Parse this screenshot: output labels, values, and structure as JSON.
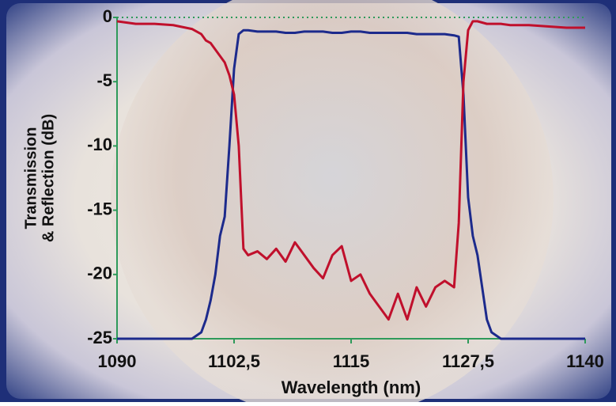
{
  "chart_data": {
    "type": "line",
    "ylabel": [
      "Transmission",
      "& Reflection (dB)"
    ],
    "xlabel": "Wavelength (nm)",
    "x": [
      1090,
      1092,
      1094,
      1096,
      1098,
      1099,
      1099.5,
      1100,
      1100.5,
      1101,
      1101.5,
      1102,
      1102.5,
      1103,
      1103.5,
      1104,
      1105,
      1106,
      1107,
      1108,
      1109,
      1110,
      1111,
      1112,
      1113,
      1114,
      1115,
      1116,
      1117,
      1118,
      1119,
      1120,
      1121,
      1122,
      1123,
      1124,
      1125,
      1126,
      1126.5,
      1127,
      1127.5,
      1128,
      1128.5,
      1129,
      1129.5,
      1130,
      1131,
      1132,
      1134,
      1136,
      1138,
      1140
    ],
    "series": [
      {
        "color": "#1c2a8c",
        "values": [
          -25,
          -25,
          -25,
          -25,
          -25,
          -24.5,
          -23.5,
          -22,
          -20,
          -17,
          -15.5,
          -10,
          -4,
          -1.3,
          -1,
          -1,
          -1.1,
          -1.1,
          -1.1,
          -1.2,
          -1.2,
          -1.1,
          -1.1,
          -1.1,
          -1.2,
          -1.2,
          -1.1,
          -1.1,
          -1.2,
          -1.2,
          -1.2,
          -1.2,
          -1.2,
          -1.3,
          -1.3,
          -1.3,
          -1.3,
          -1.4,
          -1.5,
          -6,
          -14,
          -17,
          -18.5,
          -21,
          -23.5,
          -24.5,
          -25,
          -25,
          -25,
          -25,
          -25,
          -25
        ]
      },
      {
        "color": "#c0102c",
        "values": [
          -0.3,
          -0.5,
          -0.5,
          -0.6,
          -0.9,
          -1.3,
          -1.8,
          -2,
          -2.5,
          -3,
          -3.5,
          -4.5,
          -6,
          -10,
          -18,
          -18.5,
          -18.2,
          -18.8,
          -18,
          -19,
          -17.5,
          -18.5,
          -19.5,
          -20.3,
          -18.5,
          -17.8,
          -20.5,
          -20,
          -21.5,
          -22.5,
          -23.5,
          -21.5,
          -23.5,
          -21,
          -22.5,
          -21,
          -20.5,
          -21,
          -16,
          -5,
          -1,
          -0.3,
          -0.3,
          -0.4,
          -0.5,
          -0.5,
          -0.5,
          -0.6,
          -0.6,
          -0.7,
          -0.8,
          -0.8
        ]
      }
    ],
    "xlim": [
      1090,
      1140
    ],
    "xticks": [
      1090,
      {
        "value": 1102.5,
        "label": "1102,5"
      },
      1115,
      {
        "value": 1127.5,
        "label": "1127,5"
      },
      1140
    ],
    "ylim": [
      -25,
      0
    ],
    "yticks": [
      0,
      -5,
      -10,
      -15,
      -20,
      -25
    ],
    "grid_color": "#2e9a5a"
  }
}
